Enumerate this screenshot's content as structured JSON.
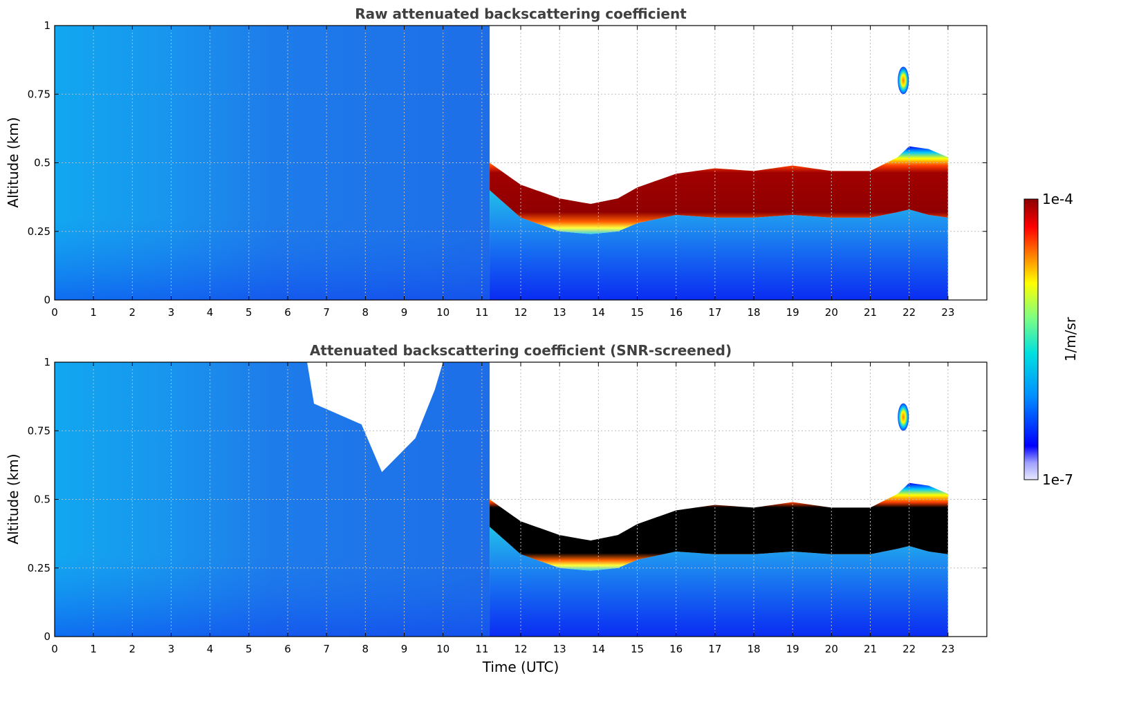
{
  "chart_data": [
    {
      "type": "heatmap",
      "title": "Raw attenuated backscattering coefficient",
      "xlabel": "",
      "ylabel": "Altitude (km)",
      "xlim": [
        0,
        24
      ],
      "ylim": [
        0,
        1
      ],
      "xticks": [
        "0",
        "1",
        "2",
        "3",
        "4",
        "5",
        "6",
        "7",
        "8",
        "9",
        "10",
        "11",
        "12",
        "13",
        "14",
        "15",
        "16",
        "17",
        "18",
        "19",
        "20",
        "21",
        "22",
        "23"
      ],
      "yticks": [
        "0",
        "0.25",
        "0.5",
        "0.75",
        "1"
      ],
      "grid": true,
      "data_end_time": 23,
      "layer_start_time": 11.2,
      "layer": {
        "time": [
          11.2,
          12,
          13,
          13.8,
          14.5,
          15,
          16,
          17,
          18,
          19,
          20,
          21,
          21.7,
          22,
          22.5,
          23
        ],
        "top_km": [
          0.5,
          0.42,
          0.37,
          0.35,
          0.37,
          0.41,
          0.46,
          0.48,
          0.47,
          0.49,
          0.47,
          0.47,
          0.52,
          0.56,
          0.55,
          0.52
        ],
        "bottom_km": [
          0.4,
          0.3,
          0.25,
          0.24,
          0.25,
          0.28,
          0.31,
          0.3,
          0.3,
          0.31,
          0.3,
          0.3,
          0.32,
          0.33,
          0.31,
          0.3
        ]
      },
      "isolated_cloud": {
        "time": 21.85,
        "altitude_km": [
          0.75,
          0.85
        ]
      },
      "screened": false
    },
    {
      "type": "heatmap",
      "title": "Attenuated backscattering coefficient (SNR-screened)",
      "xlabel": "Time (UTC)",
      "ylabel": "Altitude (km)",
      "xlim": [
        0,
        24
      ],
      "ylim": [
        0,
        1
      ],
      "xticks": [
        "0",
        "1",
        "2",
        "3",
        "4",
        "5",
        "6",
        "7",
        "8",
        "9",
        "10",
        "11",
        "12",
        "13",
        "14",
        "15",
        "16",
        "17",
        "18",
        "19",
        "20",
        "21",
        "22",
        "23"
      ],
      "yticks": [
        "0",
        "0.25",
        "0.5",
        "0.75",
        "1"
      ],
      "grid": true,
      "data_end_time": 23,
      "layer_start_time": 11.2,
      "layer": {
        "time": [
          11.2,
          12,
          13,
          13.8,
          14.5,
          15,
          16,
          17,
          18,
          19,
          20,
          21,
          21.7,
          22,
          22.5,
          23
        ],
        "top_km": [
          0.5,
          0.42,
          0.37,
          0.35,
          0.37,
          0.41,
          0.46,
          0.48,
          0.47,
          0.49,
          0.47,
          0.47,
          0.52,
          0.56,
          0.55,
          0.52
        ],
        "bottom_km": [
          0.4,
          0.3,
          0.25,
          0.24,
          0.25,
          0.28,
          0.31,
          0.3,
          0.3,
          0.31,
          0.3,
          0.3,
          0.32,
          0.33,
          0.31,
          0.3
        ]
      },
      "isolated_cloud": {
        "time": 21.85,
        "altitude_km": [
          0.75,
          0.85
        ]
      },
      "screened": true,
      "screened_gap": {
        "time_range": [
          6.5,
          10
        ],
        "altitude_km": [
          0.65,
          1.0
        ]
      }
    }
  ],
  "colorbar": {
    "label": "1/m/sr",
    "max_label": "1e-4",
    "min_label": "1e-7",
    "scale": "log",
    "colormap": "jet"
  },
  "colors": {
    "background_aerosol": "#1e8cf0",
    "clear_air": "#ffffff",
    "layer_core_raw": "#8b0000",
    "layer_core_screened": "#000000",
    "axis_text": "#000000",
    "title_text": "#404040"
  }
}
